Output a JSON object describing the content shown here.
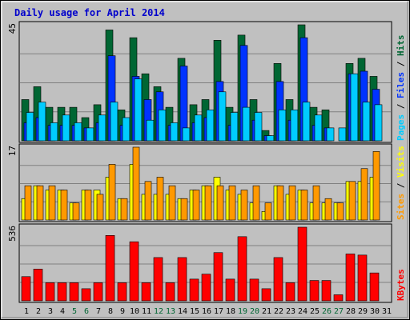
{
  "chart_data": {
    "type": "bar",
    "title": "Daily usage for April 2014",
    "days": [
      "1",
      "2",
      "3",
      "4",
      "5",
      "6",
      "7",
      "8",
      "9",
      "10",
      "11",
      "12",
      "13",
      "14",
      "15",
      "16",
      "17",
      "18",
      "19",
      "20",
      "21",
      "22",
      "23",
      "24",
      "25",
      "26",
      "27",
      "28",
      "29",
      "30",
      "31"
    ],
    "weekend_days": [
      "5",
      "6",
      "12",
      "13",
      "19",
      "20",
      "26",
      "27"
    ],
    "colors": {
      "hits": "#006633",
      "files": "#0033ff",
      "pages": "#00ccff",
      "visits": "#ffff00",
      "sites": "#ff9900",
      "kbytes": "#ff0000",
      "weekday_text": "#000000",
      "weekend_text": "#006633"
    },
    "panels": [
      {
        "name": "hits-files-pages",
        "ymax_label": "45",
        "ymax": 45,
        "legend": [
          {
            "text": "Pages",
            "color": "#00ccff"
          },
          {
            "text": " / ",
            "color": "#000000"
          },
          {
            "text": "Files",
            "color": "#0033ff"
          },
          {
            "text": " / ",
            "color": "#000000"
          },
          {
            "text": "Hits",
            "color": "#006633"
          }
        ],
        "series": [
          {
            "key": "hits",
            "values": [
              16,
              21,
              13,
              13,
              13,
              9,
              14,
              43,
              12,
              40,
              26,
              21,
              13,
              32,
              14,
              16,
              39,
              13,
              41,
              16,
              4,
              30,
              16,
              45,
              13,
              12,
              0,
              30,
              32,
              25,
              0
            ]
          },
          {
            "key": "files",
            "values": [
              7,
              9,
              6,
              6,
              6,
              5,
              7,
              33,
              6,
              25,
              16,
              19,
              6,
              29,
              7,
              9,
              23,
              6,
              37,
              8,
              2,
              23,
              8,
              40,
              6,
              5,
              0,
              26,
              27,
              20,
              0
            ]
          },
          {
            "key": "pages",
            "values": [
              11,
              15,
              7,
              10,
              7,
              5,
              10,
              15,
              9,
              24,
              8,
              12,
              7,
              5,
              10,
              12,
              19,
              11,
              13,
              11,
              2,
              12,
              12,
              15,
              10,
              5,
              5,
              26,
              15,
              14,
              0
            ]
          }
        ]
      },
      {
        "name": "visits-sites",
        "ymax_label": "17",
        "ymax": 17,
        "legend": [
          {
            "text": "Sites",
            "color": "#ff9900"
          },
          {
            "text": " / ",
            "color": "#000000"
          },
          {
            "text": "Visits",
            "color": "#ffff00"
          }
        ],
        "series": [
          {
            "key": "visits",
            "values": [
              5,
              8,
              7,
              7,
              4,
              7,
              7,
              10,
              5,
              13,
              6,
              6,
              6,
              5,
              7,
              8,
              10,
              7,
              6,
              4,
              2,
              8,
              6,
              7,
              4,
              4,
              4,
              9,
              9,
              10,
              0
            ]
          },
          {
            "key": "sites",
            "values": [
              8,
              8,
              8,
              7,
              4,
              7,
              6,
              13,
              5,
              17,
              9,
              10,
              8,
              5,
              7,
              8,
              8,
              8,
              7,
              8,
              4,
              8,
              8,
              7,
              8,
              5,
              4,
              9,
              12,
              16,
              0
            ]
          }
        ]
      },
      {
        "name": "kbytes",
        "ymax_label": "536",
        "ymax": 536,
        "legend": [
          {
            "text": "KBytes",
            "color": "#ff0000"
          }
        ],
        "series": [
          {
            "key": "kbytes",
            "values": [
              176,
              231,
              132,
              132,
              132,
              88,
              132,
              476,
              132,
              430,
              132,
              315,
              132,
              315,
              158,
              194,
              351,
              158,
              467,
              158,
              88,
              315,
              132,
              536,
              148,
              148,
              44,
              341,
              333,
              203,
              0
            ]
          }
        ]
      }
    ]
  }
}
